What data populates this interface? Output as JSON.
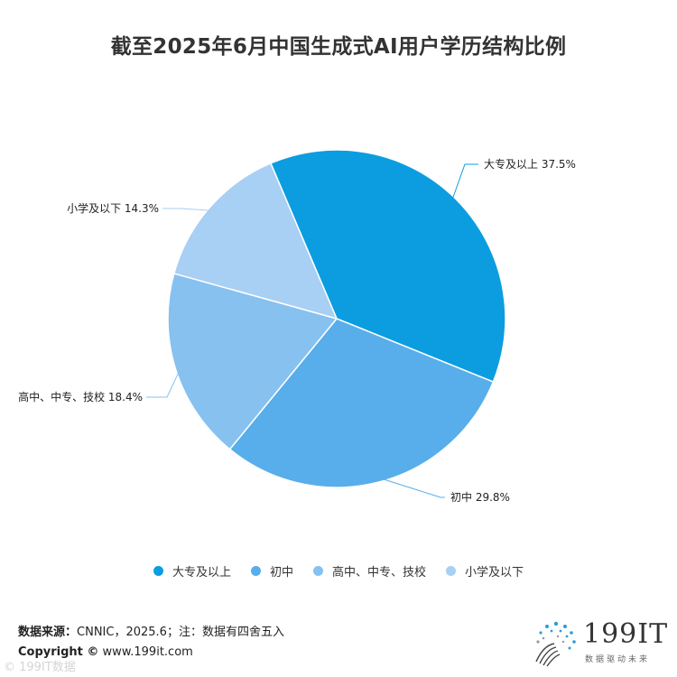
{
  "title": "截至2025年6月中国生成式AI用户学历结构比例",
  "chart_data": {
    "type": "pie",
    "title": "截至2025年6月中国生成式AI用户学历结构比例",
    "slices": [
      {
        "label": "大专及以上",
        "value": 37.5,
        "display": "大专及以上 37.5%",
        "color": "#0b9de0"
      },
      {
        "label": "初中",
        "value": 29.8,
        "display": "初中 29.8%",
        "color": "#57aeea"
      },
      {
        "label": "高中、中专、技校",
        "value": 18.4,
        "display": "高中、中专、技校 18.4%",
        "color": "#86c1f0"
      },
      {
        "label": "小学及以下",
        "value": 14.3,
        "display": "小学及以下 14.3%",
        "color": "#a8cff4"
      }
    ],
    "start_angle_deg": -113,
    "legend_position": "bottom"
  },
  "footer": {
    "source_label": "数据来源：",
    "source_text": "CNNIC，2025.6；注：数据有四舍五入",
    "copyright_label": "Copyright ©",
    "copyright_text": " www.199it.com"
  },
  "logo": {
    "text": "199IT",
    "slogan": "数据驱动未来"
  },
  "watermark": "© 199IT数据"
}
